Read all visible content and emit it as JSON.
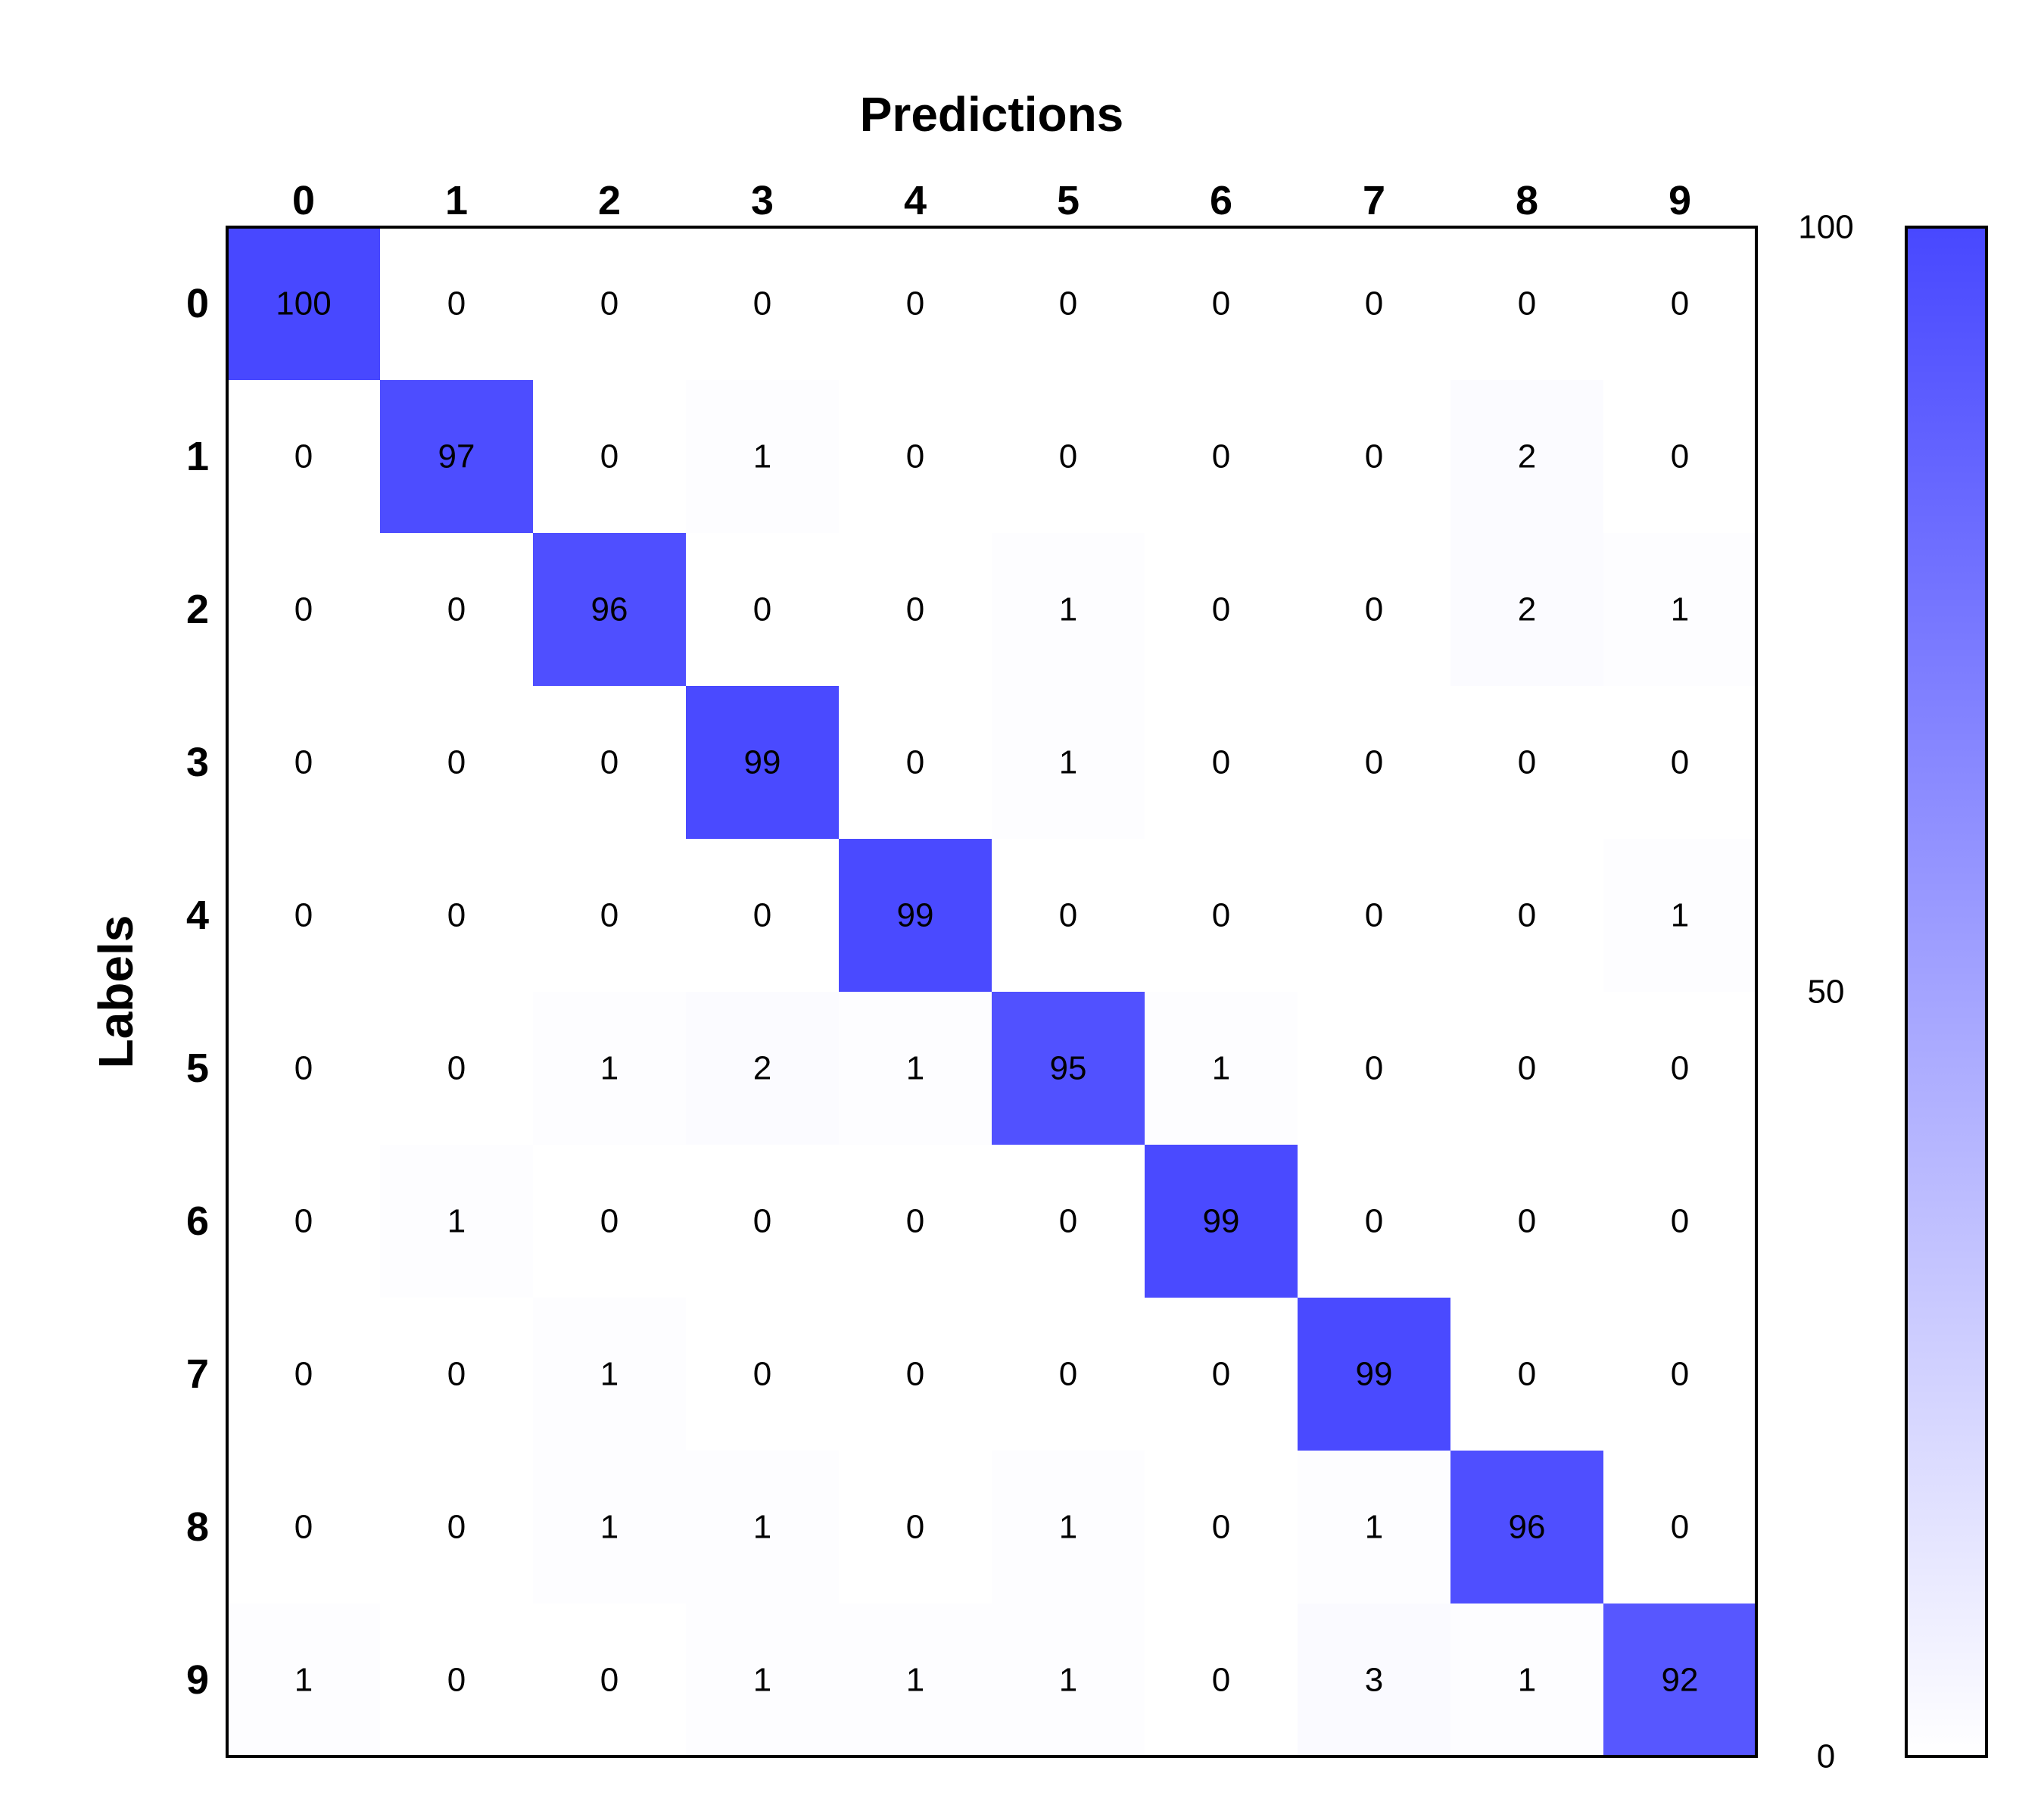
{
  "colors": {
    "low": "#ffffff",
    "high": "#4848ff",
    "frame": "#000000"
  },
  "chart_data": {
    "type": "heatmap",
    "xlabel": "Predictions",
    "ylabel": "Labels",
    "x_categories": [
      "0",
      "1",
      "2",
      "3",
      "4",
      "5",
      "6",
      "7",
      "8",
      "9"
    ],
    "y_categories": [
      "0",
      "1",
      "2",
      "3",
      "4",
      "5",
      "6",
      "7",
      "8",
      "9"
    ],
    "values": [
      [
        100,
        0,
        0,
        0,
        0,
        0,
        0,
        0,
        0,
        0
      ],
      [
        0,
        97,
        0,
        1,
        0,
        0,
        0,
        0,
        2,
        0
      ],
      [
        0,
        0,
        96,
        0,
        0,
        1,
        0,
        0,
        2,
        1
      ],
      [
        0,
        0,
        0,
        99,
        0,
        1,
        0,
        0,
        0,
        0
      ],
      [
        0,
        0,
        0,
        0,
        99,
        0,
        0,
        0,
        0,
        1
      ],
      [
        0,
        0,
        1,
        2,
        1,
        95,
        1,
        0,
        0,
        0
      ],
      [
        0,
        1,
        0,
        0,
        0,
        0,
        99,
        0,
        0,
        0
      ],
      [
        0,
        0,
        1,
        0,
        0,
        0,
        0,
        99,
        0,
        0
      ],
      [
        0,
        0,
        1,
        1,
        0,
        1,
        0,
        1,
        96,
        0
      ],
      [
        1,
        0,
        0,
        1,
        1,
        1,
        0,
        3,
        1,
        92
      ]
    ],
    "colorbar": {
      "range": [
        0,
        100
      ],
      "ticks": [
        "0",
        "50",
        "100"
      ]
    }
  }
}
